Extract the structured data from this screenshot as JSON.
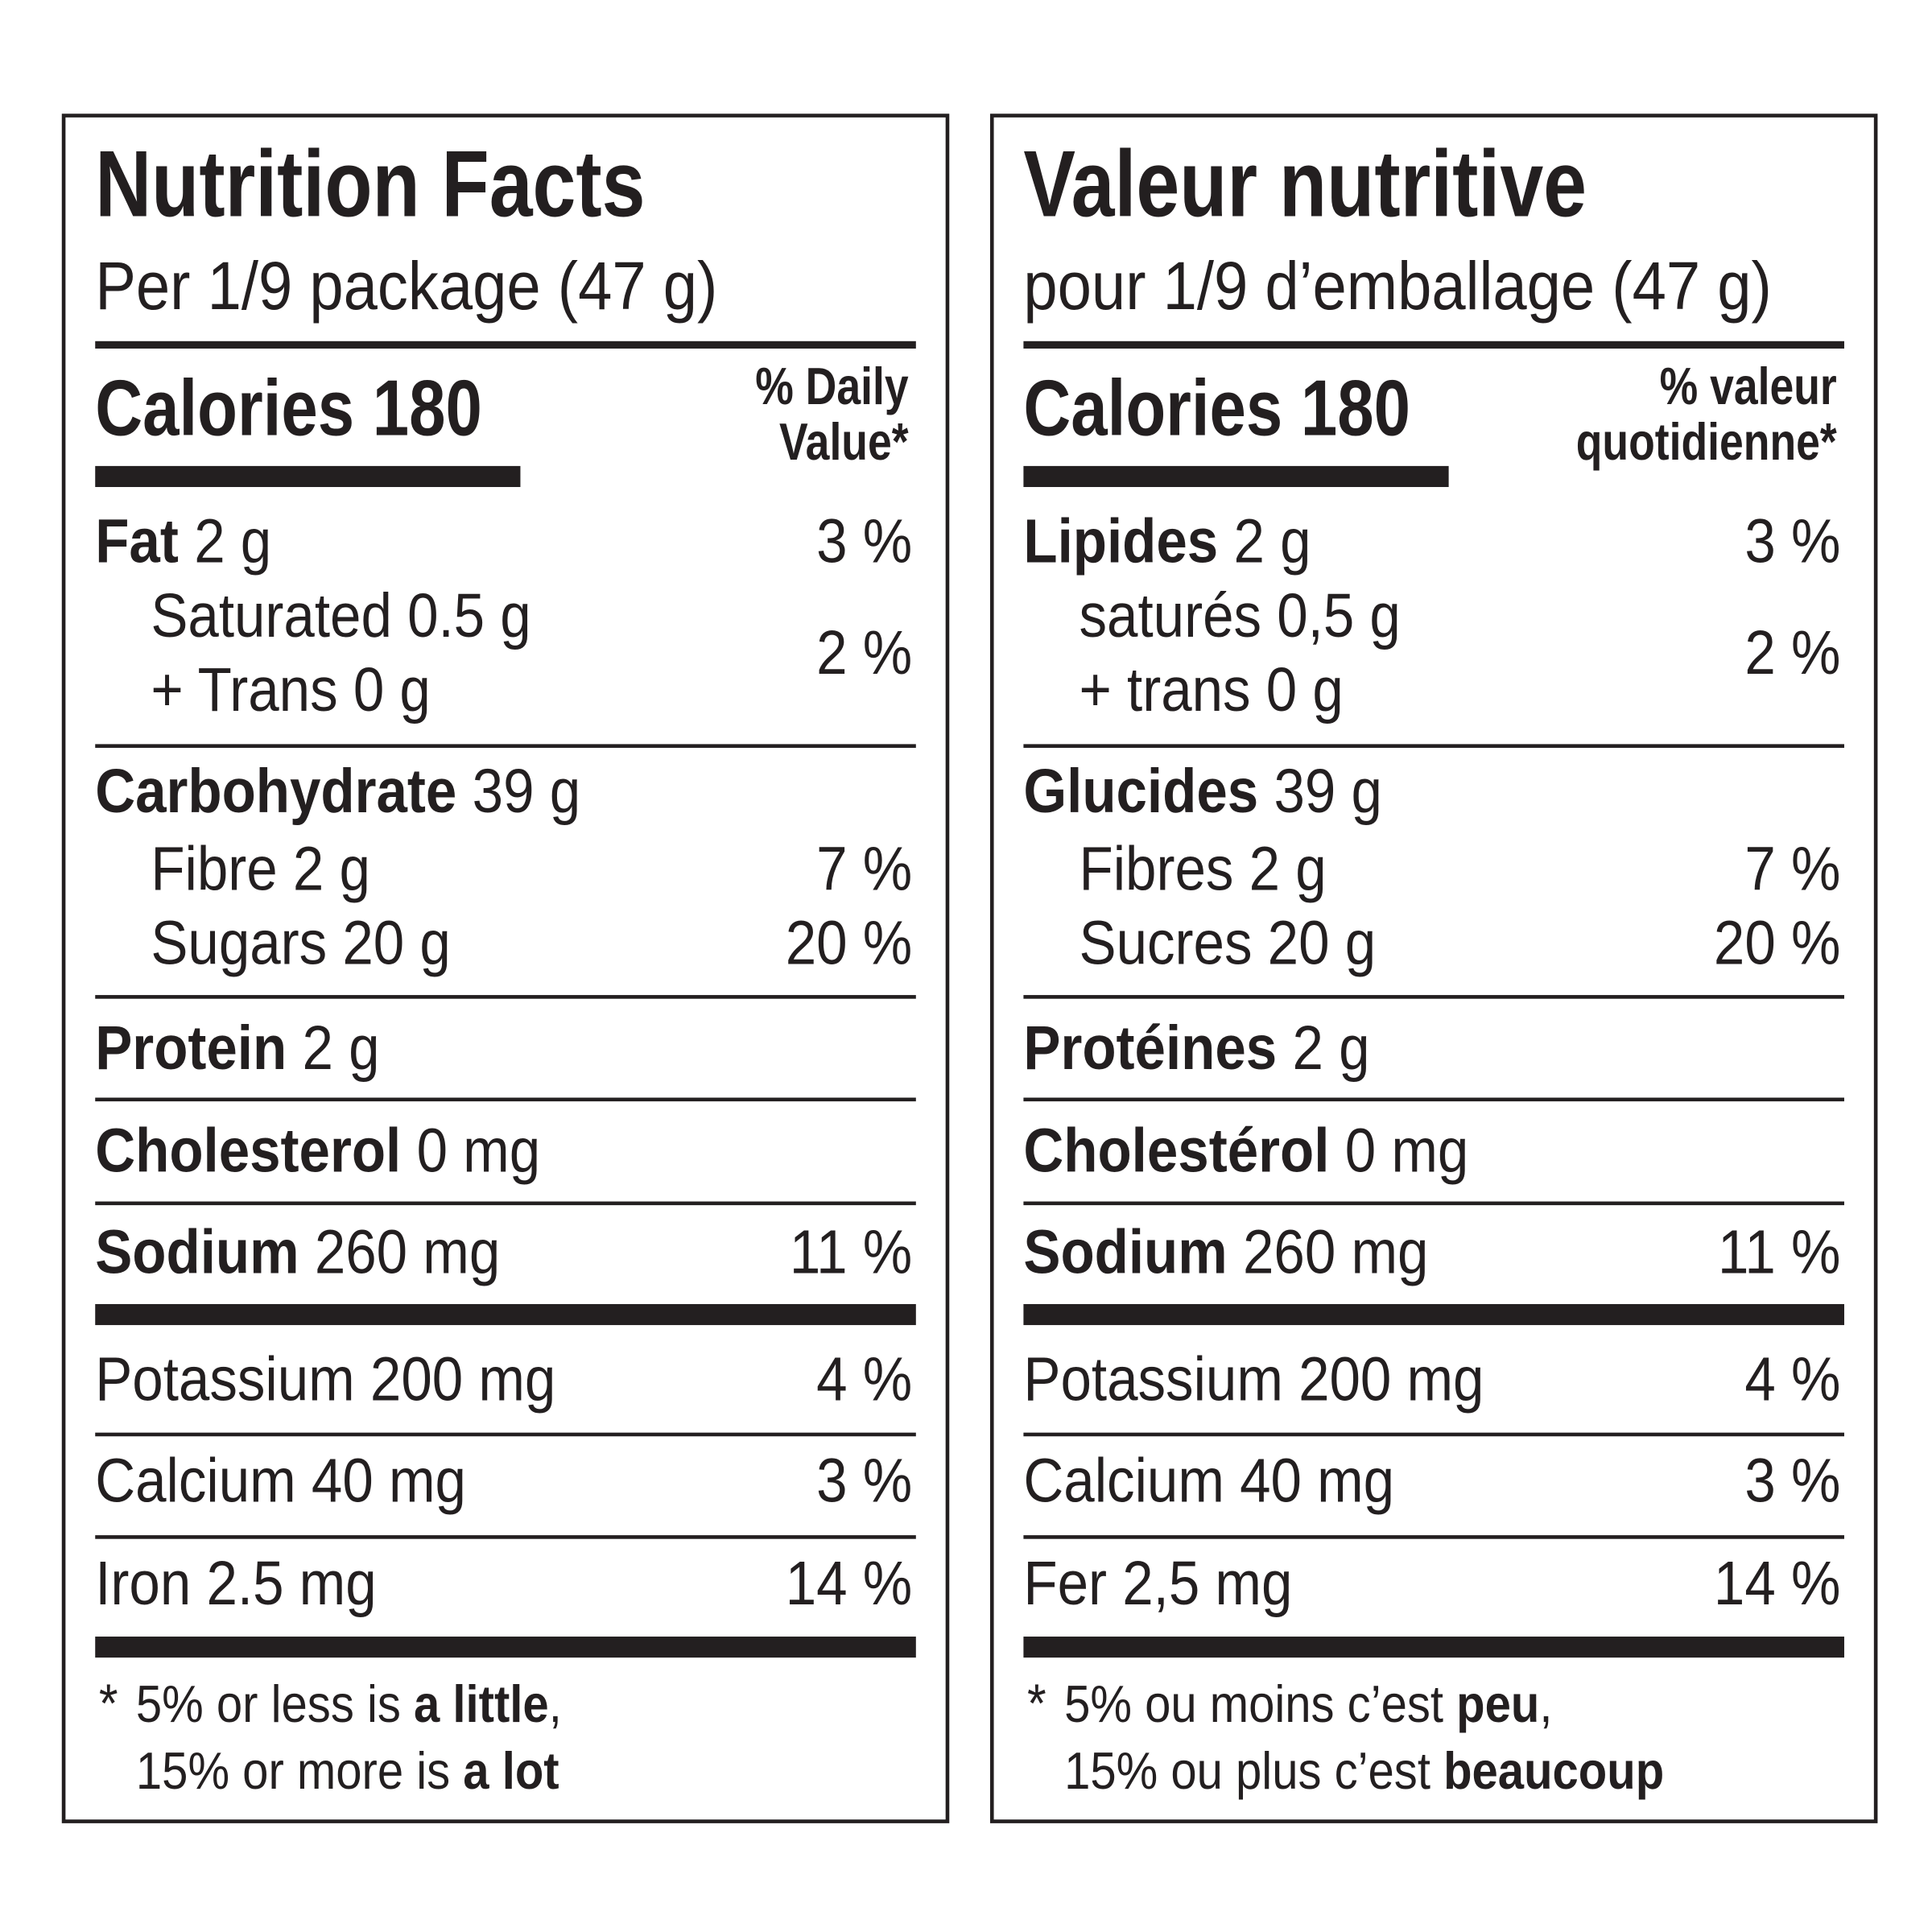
{
  "panels": [
    {
      "title": "Nutrition Facts",
      "serving": "Per 1/9 package (47 g)",
      "calories": "Calories 180",
      "dv_header": [
        "% Daily",
        "Value*"
      ],
      "rows": [
        {
          "label": "Fat",
          "text": "2 g",
          "dv": "3 %"
        },
        {
          "lines": [
            "Saturated 0.5 g",
            "+ Trans 0 g"
          ],
          "dv": "2 %",
          "indent": true
        },
        {
          "label": "Carbohydrate",
          "text": "39 g"
        },
        {
          "text": "Fibre 2 g",
          "dv": "7 %",
          "indent": true
        },
        {
          "text": "Sugars 20 g",
          "dv": "20 %",
          "indent": true
        },
        {
          "label": "Protein",
          "text": "2 g"
        },
        {
          "label": "Cholesterol",
          "text": "0 mg"
        },
        {
          "label": "Sodium",
          "text": "260 mg",
          "dv": "11 %"
        },
        {
          "text": "Potassium 200 mg",
          "dv": "4 %"
        },
        {
          "text": "Calcium 40 mg",
          "dv": "3 %"
        },
        {
          "text": "Iron 2.5 mg",
          "dv": "14 %"
        }
      ],
      "footnote": {
        "mark": "*",
        "lines": [
          [
            {
              "text": "5% or less is "
            },
            {
              "text": "a little",
              "bold": true
            },
            {
              "text": ","
            }
          ],
          [
            {
              "text": "15% or more is "
            },
            {
              "text": "a lot",
              "bold": true
            }
          ]
        ]
      }
    },
    {
      "title": "Valeur nutritive",
      "serving": "pour 1/9 d’emballage (47 g)",
      "calories": "Calories 180",
      "dv_header": [
        "% valeur",
        "quotidienne*"
      ],
      "rows": [
        {
          "label": "Lipides",
          "text": "2 g",
          "dv": "3 %"
        },
        {
          "lines": [
            "saturés 0,5 g",
            "+ trans 0 g"
          ],
          "dv": "2 %",
          "indent": true
        },
        {
          "label": "Glucides",
          "text": "39 g"
        },
        {
          "text": "Fibres 2 g",
          "dv": "7 %",
          "indent": true
        },
        {
          "text": "Sucres 20 g",
          "dv": "20 %",
          "indent": true
        },
        {
          "label": "Protéines",
          "text": "2 g"
        },
        {
          "label": "Cholestérol",
          "text": "0 mg"
        },
        {
          "label": "Sodium",
          "text": "260 mg",
          "dv": "11 %"
        },
        {
          "text": "Potassium 200 mg",
          "dv": "4 %"
        },
        {
          "text": "Calcium 40 mg",
          "dv": "3 %"
        },
        {
          "text": "Fer 2,5 mg",
          "dv": "14 %"
        }
      ],
      "footnote": {
        "mark": "*",
        "lines": [
          [
            {
              "text": "5% ou moins c’est "
            },
            {
              "text": "peu",
              "bold": true
            },
            {
              "text": ","
            }
          ],
          [
            {
              "text": "15% ou plus c’est "
            },
            {
              "text": "beaucoup",
              "bold": true
            }
          ]
        ]
      }
    }
  ]
}
